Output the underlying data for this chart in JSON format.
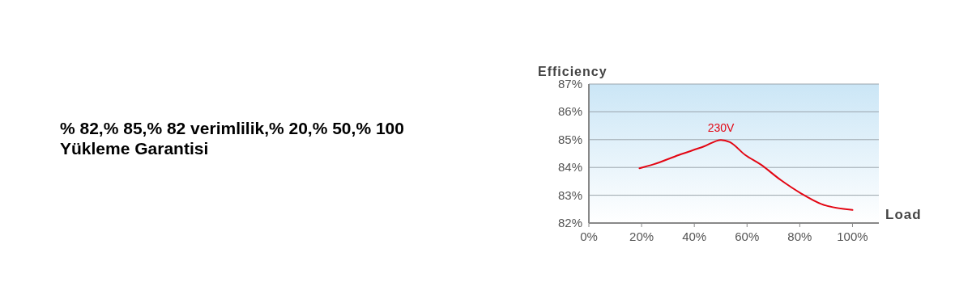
{
  "chart_data": {
    "type": "line",
    "title": "% 82,% 85,% 82 verimlilik,% 20,% 50,% 100 Yükleme Garantisi",
    "xlabel": "Load",
    "ylabel": "Efficiency",
    "series": [
      {
        "name": "230V",
        "color": "#e30613",
        "x": [
          19.2,
          24.5,
          34.2,
          43.8,
          50.1,
          53.5,
          59.3,
          65.1,
          72.9,
          80.6,
          88.3,
          100
        ],
        "values": [
          83.97,
          84.11,
          84.45,
          84.76,
          84.99,
          84.91,
          84.45,
          84.11,
          83.54,
          83.06,
          82.68,
          82.47
        ]
      }
    ],
    "xlim": [
      0,
      110
    ],
    "xticks": [
      {
        "value": 0,
        "label": "0%"
      },
      {
        "value": 20,
        "label": "20%"
      },
      {
        "value": 40,
        "label": "40%"
      },
      {
        "value": 60,
        "label": "60%"
      },
      {
        "value": 80,
        "label": "80%"
      },
      {
        "value": 100,
        "label": "100%"
      }
    ],
    "ylim": [
      82,
      87
    ],
    "yticks": [
      {
        "value": 82,
        "label": "82%"
      },
      {
        "value": 83,
        "label": "83%"
      },
      {
        "value": 84,
        "label": "84%"
      },
      {
        "value": 85,
        "label": "85%"
      },
      {
        "value": 86,
        "label": "86%"
      },
      {
        "value": 87,
        "label": "87%"
      }
    ],
    "grid": "y",
    "marker": "none",
    "line_style": "solid"
  }
}
